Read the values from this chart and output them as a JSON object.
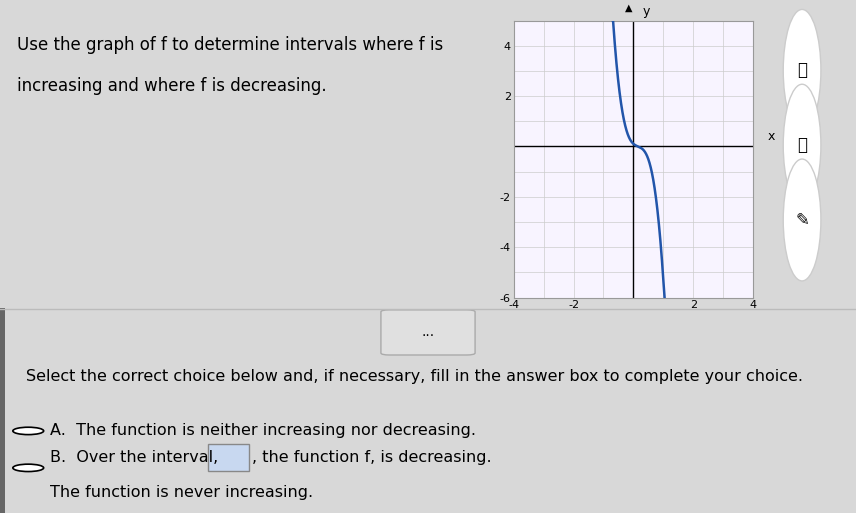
{
  "title_text1": "Use the graph of f to determine intervals where f is",
  "title_text2": "increasing and where f is decreasing.",
  "curve_color": "#2255aa",
  "curve_linewidth": 1.8,
  "xlim": [
    -4,
    4
  ],
  "ylim": [
    -6,
    5
  ],
  "xticks": [
    -4,
    -2,
    2,
    4
  ],
  "yticks": [
    -6,
    -4,
    -2,
    2,
    4
  ],
  "xlabel": "x",
  "ylabel": "y",
  "title_fontsize": 12,
  "choice_fontsize": 11.5,
  "select_fontsize": 11.5,
  "top_bg": "#d8d8d8",
  "bottom_bg": "#ffffff",
  "graph_bg": "#f8f4ff",
  "dots_text": "...",
  "select_text": "Select the correct choice below and, if necessary, fill in the answer box to complete your choice.",
  "choice_A_text": "The function is neither increasing nor decreasing.",
  "choice_B_text1": "Over the interval,",
  "choice_B_text2": ", the function f, is decreasing.",
  "choice_B_text3": "The function is never increasing.",
  "box_color": "#c8d8f0",
  "left_bar_color": "#666666",
  "separator_color": "#bbbbbb",
  "dots_bg": "#e0e0e0",
  "dots_border": "#aaaaaa"
}
